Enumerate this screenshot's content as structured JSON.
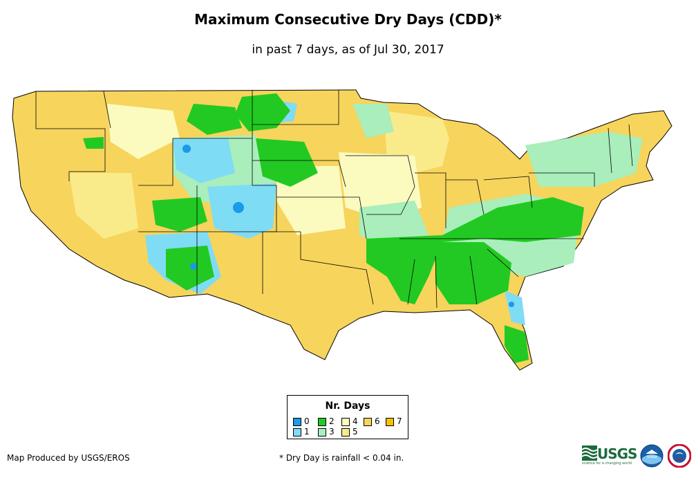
{
  "header": {
    "title": "Maximum Consecutive Dry Days (CDD)*",
    "subtitle": "in past 7 days, as of Jul 30, 2017"
  },
  "legend": {
    "title": "Nr. Days",
    "items": [
      {
        "label": "0",
        "color": "#1a9ae8"
      },
      {
        "label": "1",
        "color": "#7fdcf5"
      },
      {
        "label": "2",
        "color": "#22c922"
      },
      {
        "label": "3",
        "color": "#a9eebb"
      },
      {
        "label": "4",
        "color": "#fbfbc0"
      },
      {
        "label": "5",
        "color": "#f9eb8a"
      },
      {
        "label": "6",
        "color": "#f7d45c"
      },
      {
        "label": "7",
        "color": "#f5c200"
      }
    ]
  },
  "footer": {
    "credit": "Map Produced by USGS/EROS",
    "note": "* Dry Day is rainfall < 0.04 in."
  },
  "logos": {
    "usgs": "USGS",
    "usgs_tagline": "science for a changing world",
    "noaa": "noaa",
    "nws": "nws-icon"
  }
}
